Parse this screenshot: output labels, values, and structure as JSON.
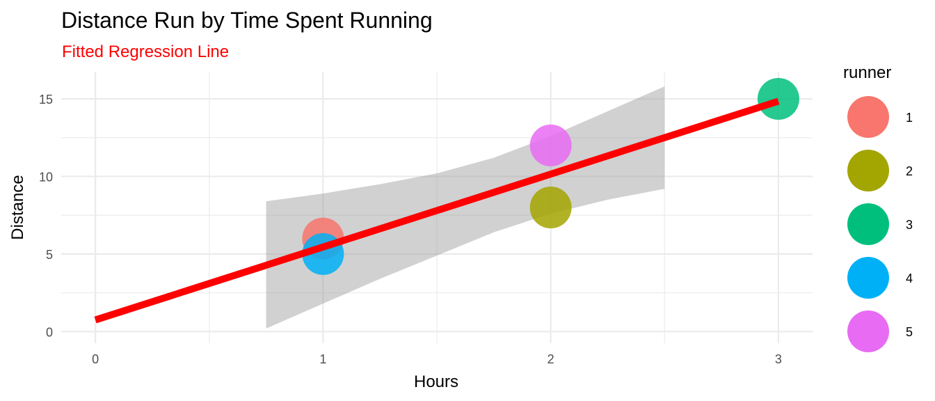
{
  "chart_data": {
    "type": "scatter",
    "title": "Distance Run by Time Spent Running",
    "subtitle": "Fitted Regression Line",
    "xlabel": "Hours",
    "ylabel": "Distance",
    "xlim": [
      -0.15,
      3.15
    ],
    "ylim": [
      -0.75,
      16.75
    ],
    "x_ticks": [
      0,
      1,
      2,
      3
    ],
    "y_ticks": [
      0,
      5,
      10,
      15
    ],
    "grid": true,
    "legend": {
      "title": "runner",
      "position": "right",
      "entries": [
        "1",
        "2",
        "3",
        "4",
        "5"
      ]
    },
    "series": [
      {
        "name": "1",
        "x": [
          1
        ],
        "y": [
          6
        ],
        "color": "#F8766D"
      },
      {
        "name": "2",
        "x": [
          2
        ],
        "y": [
          8
        ],
        "color": "#A3A500"
      },
      {
        "name": "3",
        "x": [
          3
        ],
        "y": [
          15
        ],
        "color": "#00BF7D"
      },
      {
        "name": "4",
        "x": [
          1
        ],
        "y": [
          5
        ],
        "color": "#00B0F6"
      },
      {
        "name": "5",
        "x": [
          2
        ],
        "y": [
          12
        ],
        "color": "#E76BF3"
      }
    ],
    "regression": {
      "x": [
        0,
        3
      ],
      "y": [
        0.75,
        14.85
      ],
      "color": "#FF0000"
    },
    "confidence_band": {
      "x": [
        0.75,
        1,
        1.25,
        1.5,
        1.75,
        2,
        2.25,
        2.5
      ],
      "lower": [
        0.2,
        1.8,
        3.4,
        4.9,
        6.4,
        7.6,
        8.5,
        9.2
      ],
      "upper": [
        8.4,
        8.9,
        9.5,
        10.2,
        11.2,
        12.6,
        14.2,
        15.8
      ],
      "color": "#999999"
    },
    "colors": {
      "subtitle": "#FF0000",
      "grid": "#EBEBEB",
      "tick_text": "#4D4D4D"
    }
  }
}
